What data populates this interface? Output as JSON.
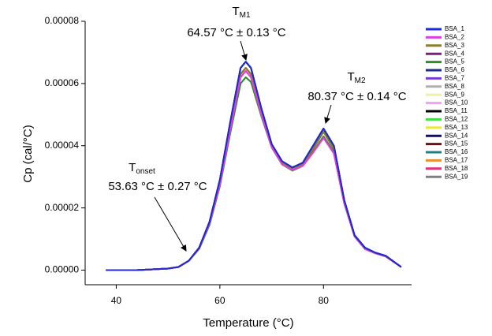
{
  "chart_data": {
    "type": "line",
    "x_label": "Temperature (°C)",
    "y_label": "Cp (cal/°C)",
    "xlim": [
      34,
      97
    ],
    "xticks": [
      40,
      60,
      80
    ],
    "ylim": [
      -4.7e-06,
      8e-05
    ],
    "yticks": [
      {
        "value": 0,
        "label": "0.00000"
      },
      {
        "value": 2e-05,
        "label": "0.00002"
      },
      {
        "value": 4e-05,
        "label": "0.00004"
      },
      {
        "value": 6e-05,
        "label": "0.00006"
      },
      {
        "value": 8e-05,
        "label": "0.00008"
      }
    ],
    "annotations": [
      {
        "symbol": "T",
        "subscript": "M1",
        "text": "64.57 °C ± 0.13 °C"
      },
      {
        "symbol": "T",
        "subscript": "M2",
        "text": "80.37 °C ± 0.14 °C"
      },
      {
        "symbol": "T",
        "subscript": "onset",
        "text": "53.63 °C ± 0.27 °C"
      }
    ],
    "x": [
      38,
      44,
      50,
      52,
      54,
      56,
      58,
      60,
      62,
      64,
      65,
      66,
      68,
      70,
      72,
      74,
      76,
      78,
      80,
      82,
      84,
      86,
      88,
      90,
      92,
      95
    ],
    "series": [
      {
        "name": "BSA_1",
        "color": "#1f2ad0",
        "values": [
          0,
          0,
          5e-07,
          1e-06,
          3e-06,
          7.2e-06,
          1.55e-05,
          2.9e-05,
          4.75e-05,
          6.5e-05,
          6.7e-05,
          6.5e-05,
          5.2e-05,
          4.05e-05,
          3.5e-05,
          3.3e-05,
          3.45e-05,
          4e-05,
          4.55e-05,
          4e-05,
          2.25e-05,
          1.12e-05,
          7.2e-06,
          5.6e-06,
          4.6e-06,
          1e-06
        ]
      },
      {
        "name": "BSA_2",
        "color": "#e040e0",
        "values": [
          0,
          0,
          5e-07,
          1e-06,
          3e-06,
          7e-06,
          1.5e-05,
          2.75e-05,
          4.5e-05,
          6.2e-05,
          6.4e-05,
          6.2e-05,
          5e-05,
          3.95e-05,
          3.4e-05,
          3.22e-05,
          3.35e-05,
          3.78e-05,
          4.25e-05,
          3.75e-05,
          2.15e-05,
          1.08e-05,
          6.8e-06,
          5.4e-06,
          4.4e-06,
          1e-06
        ]
      },
      {
        "name": "BSA_3",
        "color": "#8b7d2a",
        "values": [
          0,
          0,
          5e-07,
          1e-06,
          3e-06,
          7e-06,
          1.5e-05,
          2.8e-05,
          4.6e-05,
          6.3e-05,
          6.5e-05,
          6.3e-05,
          5.1e-05,
          4e-05,
          3.45e-05,
          3.25e-05,
          3.4e-05,
          3.9e-05,
          4.45e-05,
          3.9e-05,
          2.2e-05,
          1.1e-05,
          7e-06,
          5.5e-06,
          4.5e-06,
          1e-06
        ]
      },
      {
        "name": "BSA_4",
        "color": "#7b1f7b",
        "values": [
          0,
          0,
          5e-07,
          1e-06,
          3e-06,
          7e-06,
          1.5e-05,
          2.8e-05,
          4.6e-05,
          6.3e-05,
          6.5e-05,
          6.3e-05,
          5.1e-05,
          4e-05,
          3.45e-05,
          3.25e-05,
          3.4e-05,
          3.9e-05,
          4.45e-05,
          3.9e-05,
          2.2e-05,
          1.1e-05,
          7e-06,
          5.5e-06,
          4.5e-06,
          1e-06
        ]
      },
      {
        "name": "BSA_5",
        "color": "#2e8b2e",
        "values": [
          0,
          0,
          5e-07,
          1e-06,
          3e-06,
          6.8e-06,
          1.45e-05,
          2.7e-05,
          4.4e-05,
          6e-05,
          6.2e-05,
          6.05e-05,
          4.95e-05,
          3.95e-05,
          3.4e-05,
          3.2e-05,
          3.35e-05,
          3.8e-05,
          4.3e-05,
          3.8e-05,
          2.15e-05,
          1.08e-05,
          6.8e-06,
          5.4e-06,
          4.4e-06,
          1e-06
        ]
      },
      {
        "name": "BSA_6",
        "color": "#1a2a8a",
        "values": [
          0,
          0,
          5e-07,
          1e-06,
          3e-06,
          7.2e-06,
          1.55e-05,
          2.9e-05,
          4.75e-05,
          6.5e-05,
          6.7e-05,
          6.5e-05,
          5.2e-05,
          4.05e-05,
          3.5e-05,
          3.3e-05,
          3.45e-05,
          4e-05,
          4.55e-05,
          4e-05,
          2.25e-05,
          1.12e-05,
          7.2e-06,
          5.6e-06,
          4.6e-06,
          1e-06
        ]
      },
      {
        "name": "BSA_7",
        "color": "#7b3fd0",
        "values": [
          0,
          0,
          5e-07,
          1e-06,
          3e-06,
          7e-06,
          1.5e-05,
          2.8e-05,
          4.6e-05,
          6.3e-05,
          6.5e-05,
          6.3e-05,
          5.1e-05,
          4e-05,
          3.45e-05,
          3.25e-05,
          3.4e-05,
          3.9e-05,
          4.45e-05,
          3.9e-05,
          2.2e-05,
          1.1e-05,
          7e-06,
          5.5e-06,
          4.5e-06,
          1e-06
        ]
      },
      {
        "name": "BSA_8",
        "color": "#b0b0b0",
        "values": [
          0,
          0,
          5e-07,
          1e-06,
          3e-06,
          7e-06,
          1.5e-05,
          2.8e-05,
          4.6e-05,
          6.3e-05,
          6.5e-05,
          6.3e-05,
          5.1e-05,
          4e-05,
          3.45e-05,
          3.25e-05,
          3.4e-05,
          3.9e-05,
          4.45e-05,
          3.9e-05,
          2.2e-05,
          1.1e-05,
          7e-06,
          5.5e-06,
          4.5e-06,
          1e-06
        ]
      },
      {
        "name": "BSA_9",
        "color": "#f0f0a0",
        "values": [
          0,
          0,
          5e-07,
          1e-06,
          3e-06,
          7e-06,
          1.5e-05,
          2.8e-05,
          4.6e-05,
          6.3e-05,
          6.5e-05,
          6.3e-05,
          5.1e-05,
          4e-05,
          3.45e-05,
          3.25e-05,
          3.4e-05,
          3.9e-05,
          4.45e-05,
          3.9e-05,
          2.2e-05,
          1.1e-05,
          7e-06,
          5.5e-06,
          4.5e-06,
          1e-06
        ]
      },
      {
        "name": "BSA_10",
        "color": "#f0a0f0",
        "values": [
          0,
          0,
          5e-07,
          1e-06,
          3e-06,
          7e-06,
          1.5e-05,
          2.8e-05,
          4.6e-05,
          6.3e-05,
          6.5e-05,
          6.3e-05,
          5.1e-05,
          4e-05,
          3.45e-05,
          3.25e-05,
          3.4e-05,
          3.9e-05,
          4.45e-05,
          3.9e-05,
          2.2e-05,
          1.1e-05,
          7e-06,
          5.5e-06,
          4.5e-06,
          1e-06
        ]
      },
      {
        "name": "BSA_11",
        "color": "#000000",
        "values": [
          0,
          0,
          5e-07,
          1e-06,
          3e-06,
          7.2e-06,
          1.55e-05,
          2.9e-05,
          4.75e-05,
          6.5e-05,
          6.7e-05,
          6.5e-05,
          5.2e-05,
          4.05e-05,
          3.5e-05,
          3.3e-05,
          3.45e-05,
          4e-05,
          4.55e-05,
          4e-05,
          2.25e-05,
          1.12e-05,
          7.2e-06,
          5.6e-06,
          4.6e-06,
          1e-06
        ]
      },
      {
        "name": "BSA_12",
        "color": "#40e040",
        "values": [
          0,
          0,
          5e-07,
          1e-06,
          3e-06,
          6.8e-06,
          1.45e-05,
          2.7e-05,
          4.4e-05,
          6e-05,
          6.2e-05,
          6.05e-05,
          4.95e-05,
          3.95e-05,
          3.4e-05,
          3.2e-05,
          3.35e-05,
          3.8e-05,
          4.3e-05,
          3.8e-05,
          2.15e-05,
          1.08e-05,
          6.8e-06,
          5.4e-06,
          4.4e-06,
          1e-06
        ]
      },
      {
        "name": "BSA_13",
        "color": "#e8e840",
        "values": [
          0,
          0,
          5e-07,
          1e-06,
          3e-06,
          7e-06,
          1.5e-05,
          2.8e-05,
          4.6e-05,
          6.3e-05,
          6.5e-05,
          6.3e-05,
          5.1e-05,
          4e-05,
          3.45e-05,
          3.25e-05,
          3.4e-05,
          3.9e-05,
          4.45e-05,
          3.9e-05,
          2.2e-05,
          1.1e-05,
          7e-06,
          5.5e-06,
          4.5e-06,
          1e-06
        ]
      },
      {
        "name": "BSA_14",
        "color": "#101060",
        "values": [
          0,
          0,
          5e-07,
          1e-06,
          3e-06,
          7.2e-06,
          1.55e-05,
          2.9e-05,
          4.75e-05,
          6.5e-05,
          6.7e-05,
          6.5e-05,
          5.2e-05,
          4.05e-05,
          3.5e-05,
          3.3e-05,
          3.45e-05,
          4e-05,
          4.55e-05,
          4e-05,
          2.25e-05,
          1.12e-05,
          7.2e-06,
          5.6e-06,
          4.6e-06,
          1e-06
        ]
      },
      {
        "name": "BSA_15",
        "color": "#701010",
        "values": [
          0,
          0,
          5e-07,
          1e-06,
          3e-06,
          7e-06,
          1.5e-05,
          2.8e-05,
          4.6e-05,
          6.3e-05,
          6.5e-05,
          6.3e-05,
          5.1e-05,
          4e-05,
          3.45e-05,
          3.25e-05,
          3.4e-05,
          3.9e-05,
          4.45e-05,
          3.9e-05,
          2.2e-05,
          1.1e-05,
          7e-06,
          5.5e-06,
          4.5e-06,
          1e-06
        ]
      },
      {
        "name": "BSA_16",
        "color": "#208080",
        "values": [
          0,
          0,
          5e-07,
          1e-06,
          3e-06,
          7e-06,
          1.5e-05,
          2.8e-05,
          4.6e-05,
          6.3e-05,
          6.5e-05,
          6.3e-05,
          5.1e-05,
          4e-05,
          3.45e-05,
          3.25e-05,
          3.4e-05,
          3.9e-05,
          4.45e-05,
          3.9e-05,
          2.2e-05,
          1.1e-05,
          7e-06,
          5.5e-06,
          4.5e-06,
          1e-06
        ]
      },
      {
        "name": "BSA_17",
        "color": "#e89030",
        "values": [
          0,
          0,
          5e-07,
          1e-06,
          3e-06,
          7e-06,
          1.5e-05,
          2.8e-05,
          4.6e-05,
          6.3e-05,
          6.5e-05,
          6.3e-05,
          5.1e-05,
          4e-05,
          3.45e-05,
          3.25e-05,
          3.4e-05,
          3.9e-05,
          4.45e-05,
          3.9e-05,
          2.2e-05,
          1.1e-05,
          7e-06,
          5.5e-06,
          4.5e-06,
          1e-06
        ]
      },
      {
        "name": "BSA_18",
        "color": "#e0307a",
        "values": [
          0,
          0,
          5e-07,
          1e-06,
          3e-06,
          7e-06,
          1.5e-05,
          2.75e-05,
          4.5e-05,
          6.2e-05,
          6.4e-05,
          6.2e-05,
          5e-05,
          3.95e-05,
          3.4e-05,
          3.22e-05,
          3.35e-05,
          3.78e-05,
          4.25e-05,
          3.75e-05,
          2.15e-05,
          1.08e-05,
          6.8e-06,
          5.4e-06,
          4.4e-06,
          1e-06
        ]
      },
      {
        "name": "BSA_19",
        "color": "#808080",
        "values": [
          0,
          0,
          5e-07,
          1e-06,
          3e-06,
          7e-06,
          1.5e-05,
          2.8e-05,
          4.6e-05,
          6.3e-05,
          6.5e-05,
          6.3e-05,
          5.1e-05,
          4e-05,
          3.45e-05,
          3.25e-05,
          3.4e-05,
          3.9e-05,
          4.45e-05,
          3.9e-05,
          2.2e-05,
          1.1e-05,
          7e-06,
          5.5e-06,
          4.5e-06,
          1e-06
        ]
      }
    ]
  }
}
